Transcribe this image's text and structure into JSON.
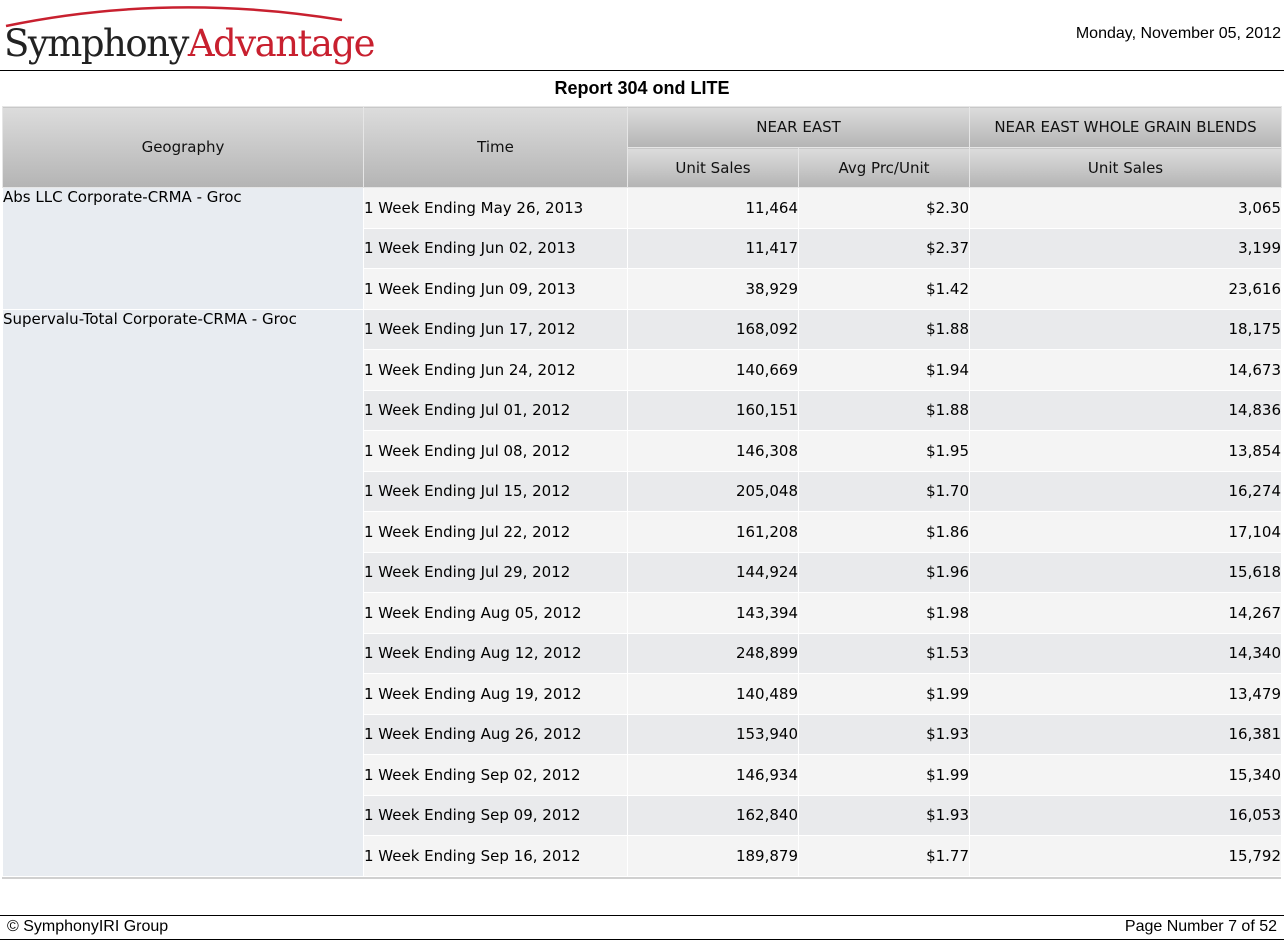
{
  "logo": {
    "part1": "Symphony",
    "part2": "Advantage"
  },
  "report_date": "Monday, November 05, 2012",
  "report_title": "Report 304 ond LITE",
  "table": {
    "headers": {
      "geography": "Geography",
      "time": "Time",
      "group1": "NEAR EAST",
      "group2": "NEAR EAST WHOLE GRAIN BLENDS",
      "g1_col1": "Unit Sales",
      "g1_col2": "Avg Prc/Unit",
      "g2_col1": "Unit Sales"
    },
    "groups": [
      {
        "geography": "Abs LLC Corporate-CRMA - Groc",
        "rows": [
          [
            "1 Week Ending May 26, 2013",
            "11,464",
            "$2.30",
            "3,065"
          ],
          [
            "1 Week Ending Jun 02, 2013",
            "11,417",
            "$2.37",
            "3,199"
          ],
          [
            "1 Week Ending Jun 09, 2013",
            "38,929",
            "$1.42",
            "23,616"
          ]
        ]
      },
      {
        "geography": "Supervalu-Total Corporate-CRMA - Groc",
        "rows": [
          [
            "1 Week Ending Jun 17, 2012",
            "168,092",
            "$1.88",
            "18,175"
          ],
          [
            "1 Week Ending Jun 24, 2012",
            "140,669",
            "$1.94",
            "14,673"
          ],
          [
            "1 Week Ending Jul 01, 2012",
            "160,151",
            "$1.88",
            "14,836"
          ],
          [
            "1 Week Ending Jul 08, 2012",
            "146,308",
            "$1.95",
            "13,854"
          ],
          [
            "1 Week Ending Jul 15, 2012",
            "205,048",
            "$1.70",
            "16,274"
          ],
          [
            "1 Week Ending Jul 22, 2012",
            "161,208",
            "$1.86",
            "17,104"
          ],
          [
            "1 Week Ending Jul 29, 2012",
            "144,924",
            "$1.96",
            "15,618"
          ],
          [
            "1 Week Ending Aug 05, 2012",
            "143,394",
            "$1.98",
            "14,267"
          ],
          [
            "1 Week Ending Aug 12, 2012",
            "248,899",
            "$1.53",
            "14,340"
          ],
          [
            "1 Week Ending Aug 19, 2012",
            "140,489",
            "$1.99",
            "13,479"
          ],
          [
            "1 Week Ending Aug 26, 2012",
            "153,940",
            "$1.93",
            "16,381"
          ],
          [
            "1 Week Ending Sep 02, 2012",
            "146,934",
            "$1.99",
            "15,340"
          ],
          [
            "1 Week Ending Sep 09, 2012",
            "162,840",
            "$1.93",
            "16,053"
          ],
          [
            "1 Week Ending Sep 16, 2012",
            "189,879",
            "$1.77",
            "15,792"
          ]
        ]
      }
    ]
  },
  "footer": {
    "copyright": "© SymphonyIRI Group",
    "page_number": "Page Number 7 of 52"
  },
  "colors": {
    "logo_red": "#c8202f",
    "header_gradient_top": "#dcdcdc",
    "header_gradient_bottom": "#b4b4b4",
    "geography_cell": "#e8ecf1",
    "row_light": "#f4f4f4",
    "row_dark": "#e9eaec"
  }
}
